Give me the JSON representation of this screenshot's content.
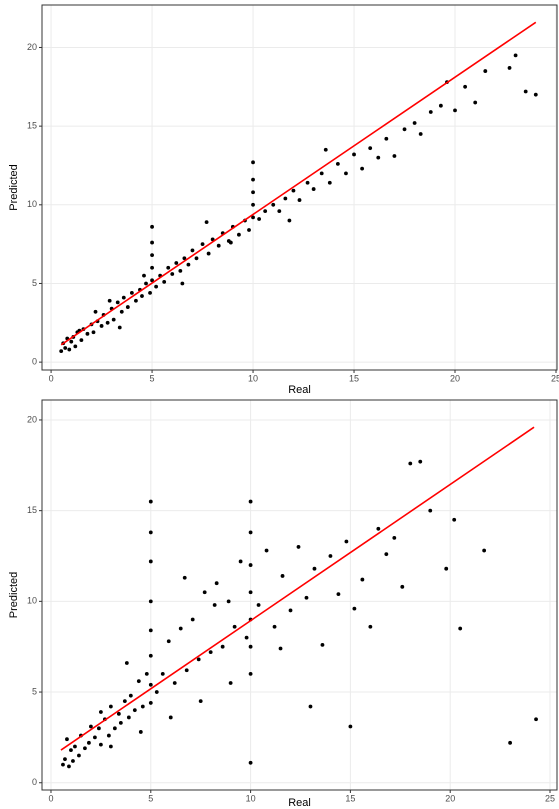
{
  "chart_data": [
    {
      "type": "scatter",
      "xlabel": "Real",
      "ylabel": "Predicted",
      "xlim": [
        -0.45,
        25.05
      ],
      "ylim": [
        -0.5,
        22.7
      ],
      "xticks": [
        0,
        5,
        10,
        15,
        20,
        25
      ],
      "yticks": [
        0,
        5,
        10,
        15,
        20
      ],
      "grid": true,
      "points": {
        "color": "#000000",
        "x": [
          0.5,
          0.6,
          0.7,
          0.8,
          0.9,
          1.0,
          1.1,
          1.2,
          1.3,
          1.5,
          1.6,
          1.8,
          2.0,
          2.1,
          2.3,
          2.5,
          2.6,
          2.8,
          3.0,
          3.1,
          3.3,
          3.5,
          3.6,
          3.8,
          4.0,
          4.2,
          4.4,
          4.5,
          4.7,
          4.9,
          5,
          5,
          5,
          5,
          5,
          5.2,
          5.4,
          5.6,
          5.8,
          6.0,
          6.2,
          6.4,
          6.6,
          6.8,
          7.0,
          7.2,
          7.5,
          7.8,
          8.0,
          8.3,
          8.5,
          8.8,
          9.0,
          9.3,
          9.6,
          9.8,
          10,
          10,
          10,
          10,
          10,
          10.3,
          10.6,
          11,
          11.3,
          11.6,
          12,
          12.3,
          12.7,
          13,
          13.4,
          13.8,
          14.2,
          14.6,
          15,
          15.4,
          15.8,
          16.2,
          16.6,
          17,
          17.5,
          18,
          18.3,
          18.8,
          19.3,
          19.6,
          20,
          20.5,
          21,
          21.5,
          22.7,
          23,
          23.5,
          24,
          2.2,
          3.4,
          4.6,
          6.5,
          7.7,
          8.9,
          11.8,
          13.6,
          1.4,
          2.9
        ],
        "y": [
          0.7,
          1.2,
          0.9,
          1.5,
          0.8,
          1.3,
          1.6,
          1.0,
          1.9,
          1.4,
          2.1,
          1.8,
          2.4,
          1.9,
          2.6,
          2.3,
          3.0,
          2.5,
          3.4,
          2.7,
          3.8,
          3.2,
          4.1,
          3.5,
          4.4,
          3.9,
          4.6,
          4.2,
          5.0,
          4.4,
          5.2,
          6.0,
          6.8,
          7.6,
          8.6,
          4.8,
          5.5,
          5.1,
          6.0,
          5.6,
          6.3,
          5.8,
          6.6,
          6.2,
          7.1,
          6.6,
          7.5,
          6.9,
          7.8,
          7.4,
          8.2,
          7.7,
          8.6,
          8.1,
          9.0,
          8.4,
          9.2,
          10.0,
          10.8,
          11.6,
          12.7,
          9.1,
          9.6,
          10.0,
          9.6,
          10.4,
          10.9,
          10.3,
          11.4,
          11.0,
          12.0,
          11.4,
          12.6,
          12.0,
          13.2,
          12.3,
          13.6,
          13.0,
          14.2,
          13.1,
          14.8,
          15.2,
          14.5,
          15.9,
          16.3,
          17.8,
          16.0,
          17.5,
          16.5,
          18.5,
          18.7,
          19.5,
          17.2,
          17.0,
          3.2,
          2.2,
          5.5,
          5.0,
          8.9,
          7.6,
          9.0,
          13.5,
          2.0,
          3.9
        ]
      },
      "fit_line": {
        "color": "#ff0000",
        "x": [
          0.5,
          24
        ],
        "y": [
          1.1,
          21.6
        ]
      }
    },
    {
      "type": "scatter",
      "xlabel": "Real",
      "ylabel": "Predicted",
      "xlim": [
        -0.45,
        25.35
      ],
      "ylim": [
        -0.4,
        21.1
      ],
      "xticks": [
        0,
        5,
        10,
        15,
        20,
        25
      ],
      "yticks": [
        0,
        5,
        10,
        15,
        20
      ],
      "grid": true,
      "points": {
        "color": "#000000",
        "x": [
          0.6,
          0.7,
          0.8,
          0.9,
          1.0,
          1.1,
          1.2,
          1.4,
          1.5,
          1.7,
          1.9,
          2.0,
          2.2,
          2.4,
          2.5,
          2.7,
          2.9,
          3.0,
          3.2,
          3.4,
          3.5,
          3.7,
          3.9,
          4.0,
          4.2,
          4.4,
          4.6,
          4.8,
          5,
          5,
          5,
          5,
          5,
          5,
          5,
          5,
          5.3,
          5.6,
          5.9,
          6.2,
          6.5,
          6.8,
          7.1,
          7.4,
          7.7,
          8.0,
          8.3,
          8.6,
          8.9,
          9.2,
          9.5,
          9.8,
          10,
          10,
          10,
          10,
          10,
          10,
          10,
          10,
          10.4,
          10.8,
          11.2,
          11.6,
          12,
          12.4,
          12.8,
          13.2,
          13.6,
          14,
          14.4,
          14.8,
          15.2,
          15.6,
          16,
          16.4,
          16.8,
          17.2,
          17.6,
          18,
          18.5,
          19.0,
          19.8,
          20.2,
          20.5,
          21.7,
          23,
          24.3,
          15,
          13,
          3.0,
          4.5,
          6.0,
          7.5,
          9.0,
          2.5,
          3.8,
          6.7,
          8.2,
          11.5
        ],
        "y": [
          1.0,
          1.3,
          2.4,
          0.9,
          1.8,
          1.2,
          2.0,
          1.5,
          2.6,
          1.9,
          2.2,
          3.1,
          2.5,
          3.0,
          2.1,
          3.5,
          2.6,
          4.2,
          3.0,
          3.8,
          3.3,
          4.5,
          3.6,
          4.8,
          4.0,
          5.6,
          4.2,
          6.0,
          4.4,
          5.4,
          7.0,
          8.4,
          10.0,
          12.2,
          13.8,
          15.5,
          5.0,
          6.0,
          7.8,
          5.5,
          8.5,
          6.2,
          9.0,
          6.8,
          10.5,
          7.2,
          11.0,
          7.5,
          10.0,
          8.6,
          12.2,
          8.0,
          1.1,
          6.0,
          7.5,
          9.0,
          10.5,
          12.0,
          13.8,
          15.5,
          9.8,
          12.8,
          8.6,
          11.4,
          9.5,
          13.0,
          10.2,
          11.8,
          7.6,
          12.5,
          10.4,
          13.3,
          9.6,
          11.2,
          8.6,
          14.0,
          12.6,
          13.5,
          10.8,
          17.6,
          17.7,
          15.0,
          11.8,
          14.5,
          8.5,
          12.8,
          2.2,
          3.5,
          3.1,
          4.2,
          2.0,
          2.8,
          3.6,
          4.5,
          5.5,
          3.9,
          6.6,
          11.3,
          9.8,
          7.4
        ]
      },
      "fit_line": {
        "color": "#ff0000",
        "x": [
          0.5,
          24.2
        ],
        "y": [
          1.8,
          19.6
        ]
      }
    }
  ]
}
